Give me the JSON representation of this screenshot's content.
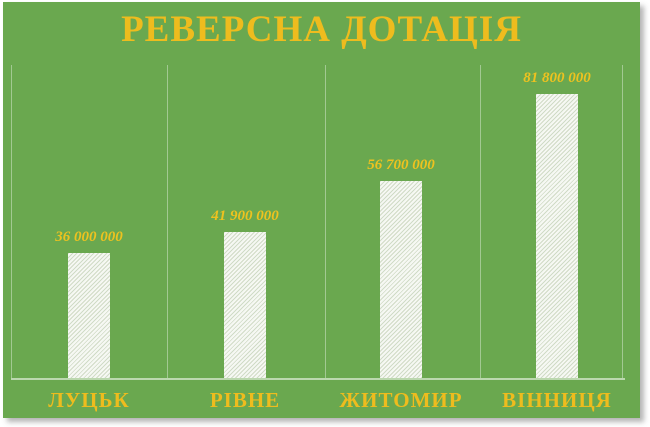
{
  "chart_data": {
    "type": "bar",
    "title": "РЕВЕРСНА ДОТАЦІЯ",
    "categories": [
      "ЛУЦЬК",
      "РІВНЕ",
      "ЖИТОМИР",
      "ВІННИЦЯ"
    ],
    "values": [
      36000000,
      41900000,
      56700000,
      81800000
    ],
    "value_labels": [
      "36 000 000",
      "41 900 000",
      "56 700 000",
      "81 800 000"
    ],
    "xlabel": "",
    "ylabel": "",
    "ylim": [
      0,
      90000000
    ],
    "legend_position": "none",
    "grid": "vertical-section-separators-and-baseline",
    "colors": {
      "background": "#6aa84f",
      "title_text": "#eebc1e",
      "value_text": "#eec21f",
      "bar_fill": "#f6f8f3",
      "bar_hatch_line": "#d0dbc6",
      "gridline": "#a9cf8f"
    }
  }
}
